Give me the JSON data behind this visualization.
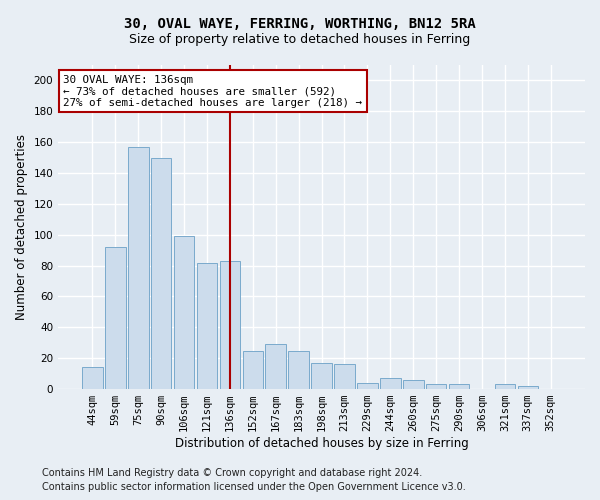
{
  "title1": "30, OVAL WAYE, FERRING, WORTHING, BN12 5RA",
  "title2": "Size of property relative to detached houses in Ferring",
  "xlabel": "Distribution of detached houses by size in Ferring",
  "ylabel": "Number of detached properties",
  "categories": [
    "44sqm",
    "59sqm",
    "75sqm",
    "90sqm",
    "106sqm",
    "121sqm",
    "136sqm",
    "152sqm",
    "167sqm",
    "183sqm",
    "198sqm",
    "213sqm",
    "229sqm",
    "244sqm",
    "260sqm",
    "275sqm",
    "290sqm",
    "306sqm",
    "321sqm",
    "337sqm",
    "352sqm"
  ],
  "values": [
    14,
    92,
    157,
    150,
    99,
    82,
    83,
    25,
    29,
    25,
    17,
    16,
    4,
    7,
    6,
    3,
    3,
    0,
    3,
    2,
    0
  ],
  "bar_color": "#ccdcec",
  "bar_edge_color": "#7aaacc",
  "highlight_index": 6,
  "highlight_line_color": "#aa0000",
  "annotation_text": "30 OVAL WAYE: 136sqm\n← 73% of detached houses are smaller (592)\n27% of semi-detached houses are larger (218) →",
  "annotation_box_color": "#ffffff",
  "annotation_box_edge": "#aa0000",
  "ylim": [
    0,
    210
  ],
  "yticks": [
    0,
    20,
    40,
    60,
    80,
    100,
    120,
    140,
    160,
    180,
    200
  ],
  "footer1": "Contains HM Land Registry data © Crown copyright and database right 2024.",
  "footer2": "Contains public sector information licensed under the Open Government Licence v3.0.",
  "bg_color": "#e8eef4",
  "plot_bg_color": "#e8eef4",
  "grid_color": "#ffffff",
  "title1_fontsize": 10,
  "title2_fontsize": 9,
  "label_fontsize": 8.5,
  "tick_fontsize": 7.5,
  "footer_fontsize": 7
}
